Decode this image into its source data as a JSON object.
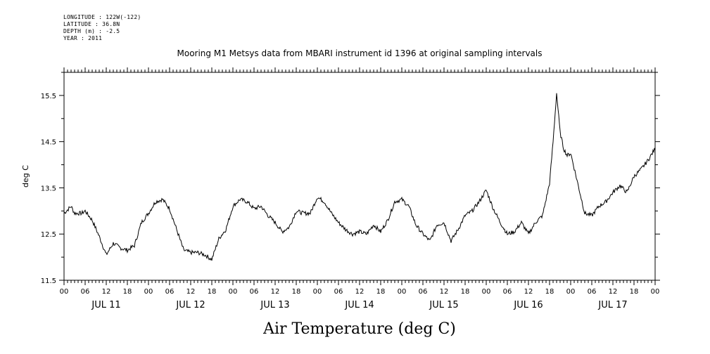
{
  "header": {
    "longitude": "LONGITUDE : 122W(-122)",
    "latitude": "LATITUDE : 36.8N",
    "depth": "DEPTH (m) : -2.5",
    "year": "YEAR : 2011"
  },
  "chart_data": {
    "type": "line",
    "title": "Mooring M1 Metsys data from MBARI instrument id 1396 at original sampling intervals",
    "xlabel": "Air Temperature (deg C)",
    "ylabel": "deg C",
    "ylim": [
      11.5,
      16.0
    ],
    "yticks": [
      11.5,
      12.5,
      13.5,
      14.5,
      15.5
    ],
    "xlim": [
      0,
      168
    ],
    "hour_tick_labels": [
      "00",
      "06",
      "12",
      "18",
      "00",
      "06",
      "12",
      "18",
      "00",
      "06",
      "12",
      "18",
      "00",
      "06",
      "12",
      "18",
      "00",
      "06",
      "12",
      "18",
      "00",
      "06",
      "12",
      "18",
      "00",
      "06",
      "12",
      "18",
      "00"
    ],
    "day_labels": [
      "JUL 11",
      "JUL 12",
      "JUL 13",
      "JUL 14",
      "JUL 15",
      "JUL 16",
      "JUL 17"
    ],
    "grid": false,
    "series": [
      {
        "color": "#000000",
        "x": [
          0,
          2,
          3,
          5,
          6,
          8,
          10,
          12,
          14,
          16,
          18,
          20,
          22,
          24,
          26,
          28,
          30,
          32,
          34,
          36,
          38,
          40,
          42,
          44,
          46,
          48,
          50,
          52,
          54,
          56,
          58,
          60,
          62,
          64,
          66,
          68,
          70,
          72,
          74,
          76,
          78,
          80,
          82,
          84,
          86,
          88,
          90,
          92,
          94,
          96,
          98,
          100,
          102,
          104,
          106,
          108,
          110,
          112,
          114,
          116,
          118,
          120,
          122,
          124,
          126,
          128,
          130,
          132,
          134,
          136,
          138,
          139,
          140,
          141,
          142,
          143,
          144,
          146,
          148,
          150,
          152,
          154,
          156,
          158,
          160,
          162,
          164,
          166,
          168
        ],
        "y": [
          12.95,
          13.1,
          12.95,
          12.95,
          13.0,
          12.8,
          12.45,
          12.05,
          12.3,
          12.2,
          12.15,
          12.25,
          12.75,
          12.95,
          13.2,
          13.25,
          13.05,
          12.6,
          12.15,
          12.1,
          12.1,
          12.05,
          11.95,
          12.4,
          12.6,
          13.1,
          13.25,
          13.2,
          13.05,
          13.1,
          12.9,
          12.75,
          12.55,
          12.65,
          13.0,
          12.95,
          12.95,
          13.3,
          13.2,
          12.95,
          12.75,
          12.6,
          12.5,
          12.55,
          12.5,
          12.7,
          12.55,
          12.8,
          13.2,
          13.25,
          13.1,
          12.7,
          12.5,
          12.35,
          12.7,
          12.75,
          12.35,
          12.6,
          12.9,
          13.0,
          13.2,
          13.45,
          13.05,
          12.75,
          12.5,
          12.55,
          12.75,
          12.5,
          12.75,
          12.9,
          13.6,
          14.5,
          15.55,
          14.7,
          14.35,
          14.2,
          14.25,
          13.6,
          12.95,
          12.9,
          13.1,
          13.2,
          13.4,
          13.55,
          13.4,
          13.75,
          13.9,
          14.1,
          14.35
        ]
      }
    ]
  }
}
